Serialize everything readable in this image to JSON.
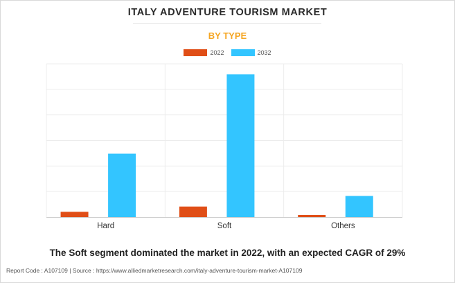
{
  "chart_data": {
    "type": "bar",
    "title": "ITALY ADVENTURE TOURISM MARKET",
    "subtitle": "BY TYPE",
    "categories": [
      "Hard",
      "Soft",
      "Others"
    ],
    "series": [
      {
        "name": "2022",
        "color": "#e04e17",
        "values": [
          0.5,
          1.0,
          0.2
        ]
      },
      {
        "name": "2032",
        "color": "#33c5ff",
        "values": [
          6.0,
          13.5,
          2.0
        ]
      }
    ],
    "ylim": [
      0,
      14.5
    ],
    "grid": true,
    "legend": "top-center",
    "y_tick_labels_shown": false
  },
  "caption": "The Soft segment dominated the market in 2022, with an expected CAGR of 29%",
  "footer": {
    "report_code": "Report Code : A107109",
    "separator": "|",
    "source": "Source : https://www.alliedmarketresearch.com/italy-adventure-tourism-market-A107109"
  }
}
